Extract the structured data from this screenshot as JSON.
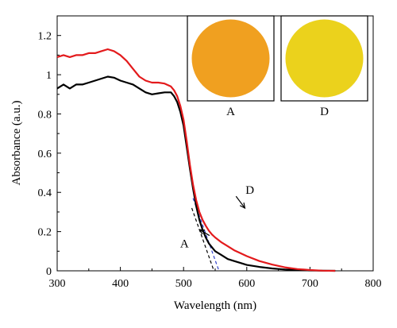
{
  "chart_data": {
    "type": "line",
    "xlabel": "Wavelength (nm)",
    "ylabel": "Absorbance (a.u.)",
    "xlim": [
      300,
      800
    ],
    "ylim": [
      0,
      1.3
    ],
    "xticks": [
      300,
      400,
      500,
      600,
      700,
      800
    ],
    "yticks": [
      0,
      0.2,
      0.4,
      0.6,
      0.8,
      1,
      1.2
    ],
    "ytick_labels": [
      "0",
      "0.2",
      "0.4",
      "0.6",
      "0.8",
      "1",
      "1.2"
    ],
    "grid": false,
    "series": [
      {
        "name": "A",
        "color": "#000000",
        "x": [
          300,
          310,
          320,
          330,
          340,
          350,
          360,
          370,
          380,
          390,
          400,
          410,
          420,
          430,
          440,
          450,
          460,
          470,
          480,
          485,
          490,
          495,
          500,
          505,
          510,
          515,
          520,
          525,
          530,
          535,
          540,
          545,
          550,
          560,
          570,
          580,
          590,
          600,
          620,
          640,
          660,
          680,
          700,
          720,
          740
        ],
        "y": [
          0.93,
          0.95,
          0.93,
          0.95,
          0.95,
          0.96,
          0.97,
          0.98,
          0.99,
          0.985,
          0.97,
          0.96,
          0.95,
          0.93,
          0.91,
          0.9,
          0.905,
          0.91,
          0.91,
          0.89,
          0.86,
          0.81,
          0.74,
          0.63,
          0.52,
          0.42,
          0.33,
          0.26,
          0.21,
          0.17,
          0.14,
          0.12,
          0.1,
          0.08,
          0.06,
          0.05,
          0.04,
          0.03,
          0.02,
          0.012,
          0.007,
          0.004,
          0.002,
          0.001,
          0
        ]
      },
      {
        "name": "D",
        "color": "#e31a1c",
        "x": [
          300,
          310,
          320,
          330,
          340,
          350,
          360,
          370,
          380,
          390,
          400,
          410,
          420,
          430,
          440,
          450,
          460,
          470,
          480,
          485,
          490,
          495,
          500,
          505,
          510,
          515,
          520,
          525,
          530,
          535,
          540,
          545,
          550,
          560,
          570,
          580,
          590,
          600,
          620,
          640,
          660,
          680,
          700,
          720,
          740
        ],
        "y": [
          1.09,
          1.1,
          1.09,
          1.1,
          1.1,
          1.11,
          1.11,
          1.12,
          1.13,
          1.12,
          1.1,
          1.07,
          1.03,
          0.99,
          0.97,
          0.96,
          0.96,
          0.955,
          0.94,
          0.92,
          0.89,
          0.84,
          0.77,
          0.66,
          0.54,
          0.44,
          0.36,
          0.3,
          0.26,
          0.23,
          0.205,
          0.185,
          0.17,
          0.145,
          0.125,
          0.105,
          0.09,
          0.075,
          0.05,
          0.032,
          0.018,
          0.009,
          0.004,
          0.001,
          0
        ]
      }
    ],
    "tangent_lines": [
      {
        "color": "#000000",
        "x": [
          513,
          548
        ],
        "y": [
          0.32,
          0
        ]
      },
      {
        "color": "#3344cc",
        "x": [
          515,
          556
        ],
        "y": [
          0.37,
          0
        ]
      }
    ],
    "annotations": [
      {
        "label": "A",
        "x": 541,
        "y": 0.18,
        "arrow_to_x": 525,
        "arrow_to_y": 0.21
      },
      {
        "label": "D",
        "x": 583,
        "y": 0.38,
        "arrow_to_x": 597,
        "arrow_to_y": 0.32
      }
    ],
    "insets": [
      {
        "label": "A",
        "color": "#f0a020"
      },
      {
        "label": "D",
        "color": "#ebd21c"
      }
    ]
  }
}
